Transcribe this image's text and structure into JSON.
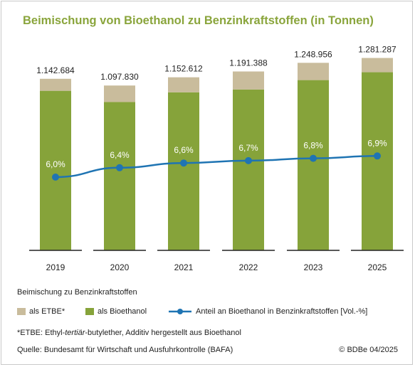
{
  "title": "Beimischung von Bioethanol zu Benzinkraftstoffen (in Tonnen)",
  "chart_data": {
    "type": "bar",
    "stacked": true,
    "categories": [
      "2019",
      "2020",
      "2021",
      "2022",
      "2023",
      "2025"
    ],
    "totals_labels": [
      "1.142.684",
      "1.097.830",
      "1.152.612",
      "1.191.388",
      "1.248.956",
      "1.281.287"
    ],
    "totals": [
      1142684,
      1097830,
      1152612,
      1191388,
      1248956,
      1281287
    ],
    "series": [
      {
        "name": "als Bioethanol",
        "color": "#86a33a",
        "values": [
          1062684,
          987830,
          1052612,
          1071388,
          1133956,
          1186287
        ]
      },
      {
        "name": "als ETBE*",
        "color": "#c9bc9c",
        "values": [
          80000,
          110000,
          100000,
          120000,
          115000,
          95000
        ]
      }
    ],
    "line": {
      "name": "Anteil an Bioethanol in Benzinkraftstoffen [Vol.-%]",
      "color": "#1f74b3",
      "values": [
        6.0,
        6.4,
        6.6,
        6.7,
        6.8,
        6.9
      ],
      "labels": [
        "6,0%",
        "6,4%",
        "6,6%",
        "6,7%",
        "6,8%",
        "6,9%"
      ]
    },
    "ylim": [
      0,
      1350000
    ],
    "legend_position": "bottom"
  },
  "legend": {
    "heading": "Beimischung zu Benzinkraftstoffen",
    "etbe": "als ETBE*",
    "bio": "als Bioethanol",
    "line": "Anteil an Bioethanol in Benzinkraftstoffen [Vol.-%]"
  },
  "footnote_prefix": "*ETBE: Ethyl-",
  "footnote_italic": "tertiär",
  "footnote_suffix": "-butylether, Additiv hergestellt aus Bioethanol",
  "source": "Quelle: Bundesamt für Wirtschaft und Ausfuhrkontrolle (BAFA)",
  "copyright": "© BDBe 04/2025"
}
